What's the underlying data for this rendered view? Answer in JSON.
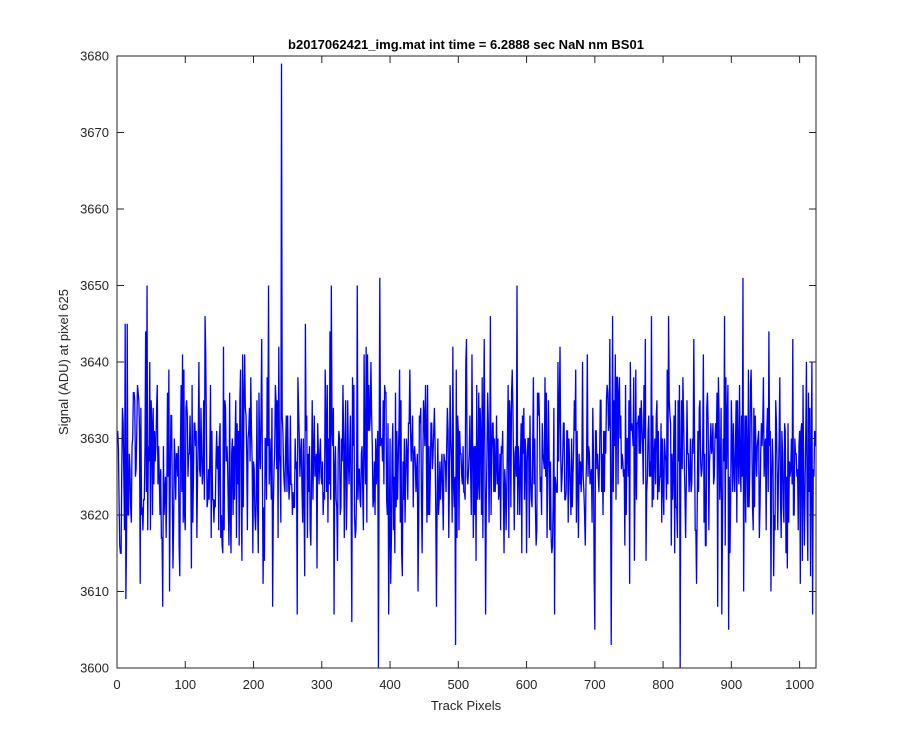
{
  "figure": {
    "background": "#ffffff"
  },
  "chart_data": {
    "type": "line",
    "title": "b2017062421_img.mat int time = 6.2888 sec  NaN nm BS01",
    "xlabel": "Track Pixels",
    "ylabel": "Signal (ADU) at pixel 625",
    "xlim": [
      0,
      1024
    ],
    "ylim": [
      3600,
      3680
    ],
    "xticks": [
      0,
      100,
      200,
      300,
      400,
      500,
      600,
      700,
      800,
      900,
      1000
    ],
    "yticks": [
      3600,
      3610,
      3620,
      3630,
      3640,
      3650,
      3660,
      3670,
      3680
    ],
    "grid": false,
    "line_color": "#0000ff",
    "series": [
      {
        "x_start": 1,
        "x_step": 1,
        "count": 1024,
        "noise_mean": 3627,
        "noise_sd": 7,
        "peaks": [
          {
            "x": 13,
            "y": 3609
          },
          {
            "x": 15,
            "y": 3645
          },
          {
            "x": 44,
            "y": 3650
          },
          {
            "x": 92,
            "y": 3612
          },
          {
            "x": 222,
            "y": 3650
          },
          {
            "x": 241,
            "y": 3679
          },
          {
            "x": 264,
            "y": 3607
          },
          {
            "x": 314,
            "y": 3650
          },
          {
            "x": 318,
            "y": 3607
          },
          {
            "x": 344,
            "y": 3606
          },
          {
            "x": 352,
            "y": 3650
          },
          {
            "x": 383,
            "y": 3600
          },
          {
            "x": 385,
            "y": 3651
          },
          {
            "x": 398,
            "y": 3607
          },
          {
            "x": 496,
            "y": 3603
          },
          {
            "x": 586,
            "y": 3650
          },
          {
            "x": 641,
            "y": 3607
          },
          {
            "x": 700,
            "y": 3605
          },
          {
            "x": 724,
            "y": 3603
          },
          {
            "x": 825,
            "y": 3600
          },
          {
            "x": 886,
            "y": 3607
          },
          {
            "x": 896,
            "y": 3605
          },
          {
            "x": 917,
            "y": 3651
          }
        ]
      }
    ]
  }
}
